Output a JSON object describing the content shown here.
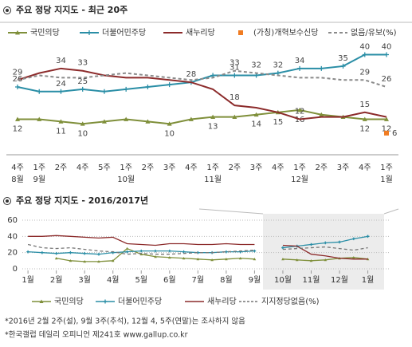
{
  "chart_data": [
    {
      "type": "line",
      "title": "주요 정당 지지도 - 최근 20주",
      "categories": [
        "4주",
        "1주",
        "2주",
        "4주",
        "5주",
        "1주",
        "2주",
        "3주",
        "4주",
        "1주",
        "2주",
        "3주",
        "4주",
        "1주",
        "2주",
        "3주",
        "4주",
        "1주"
      ],
      "months": [
        "8월",
        "9월",
        null,
        null,
        null,
        "10월",
        null,
        null,
        null,
        "11월",
        null,
        null,
        null,
        "12월",
        null,
        null,
        null,
        "1월"
      ],
      "ylim": [
        -2,
        45
      ],
      "series": [
        {
          "name": "국민의당",
          "color": "#7f8f3a",
          "marker": "triangle",
          "values": [
            12,
            12,
            11,
            10,
            11,
            12,
            11,
            10,
            12,
            13,
            13,
            14,
            15,
            16,
            14,
            13,
            12,
            12
          ],
          "value_labels": [
            "12",
            null,
            "11",
            "10",
            null,
            null,
            null,
            "10",
            null,
            "13",
            null,
            "14",
            "15",
            "16",
            null,
            null,
            "12",
            "12"
          ]
        },
        {
          "name": "더불어민주당",
          "color": "#2a8ea6",
          "marker": "plus",
          "values": [
            26,
            24,
            24,
            25,
            24,
            25,
            26,
            27,
            28,
            31,
            31,
            31,
            32,
            34,
            34,
            35,
            40,
            40
          ],
          "value_labels": [
            "26",
            null,
            "24",
            "25",
            null,
            null,
            null,
            null,
            "28",
            null,
            "31",
            null,
            "32",
            "34",
            null,
            "35",
            "40",
            "40"
          ]
        },
        {
          "name": "새누리당",
          "color": "#8c2b2b",
          "marker": null,
          "values": [
            29,
            32,
            34,
            33,
            31,
            30,
            30,
            29,
            28,
            25,
            18,
            17,
            15,
            12,
            13,
            13,
            15,
            13
          ],
          "value_labels": [
            "29",
            null,
            "34",
            "33",
            null,
            null,
            null,
            null,
            null,
            null,
            "18",
            null,
            null,
            "12",
            null,
            null,
            "15",
            null
          ]
        },
        {
          "name": "(가칭)개혁보수신당",
          "color": "#f07c22",
          "marker": "square",
          "values": [
            null,
            null,
            null,
            null,
            null,
            null,
            null,
            null,
            null,
            null,
            null,
            null,
            null,
            null,
            null,
            null,
            null,
            6
          ],
          "value_labels": [
            null,
            null,
            null,
            null,
            null,
            null,
            null,
            null,
            null,
            null,
            null,
            null,
            null,
            null,
            null,
            null,
            null,
            "6"
          ]
        },
        {
          "name": "없음/유보(%)",
          "color": "#8a8a8a",
          "marker": null,
          "style": "dashed",
          "values": [
            29,
            31,
            30,
            30,
            31,
            32,
            31,
            30,
            29,
            30,
            33,
            32,
            31,
            30,
            30,
            29,
            29,
            26
          ],
          "value_labels": [
            null,
            null,
            null,
            null,
            null,
            null,
            null,
            null,
            null,
            null,
            "33",
            "32",
            null,
            null,
            null,
            null,
            "29",
            "26"
          ]
        }
      ]
    },
    {
      "type": "line",
      "title": "주요 정당 지지도 - 2016/2017년",
      "x": [
        1,
        1.5,
        2,
        2.5,
        3,
        3.5,
        4,
        4.5,
        5,
        5.5,
        6,
        6.5,
        7,
        7.5,
        8,
        8.5,
        9,
        9.5,
        10,
        10.5,
        11,
        11.5,
        12,
        12.5,
        13
      ],
      "xlim": [
        0.8,
        13.8
      ],
      "xticks": [
        {
          "value": 1,
          "label": "1월"
        },
        {
          "value": 2,
          "label": "2월"
        },
        {
          "value": 3,
          "label": "3월"
        },
        {
          "value": 4,
          "label": "4월"
        },
        {
          "value": 5,
          "label": "5월"
        },
        {
          "value": 6,
          "label": "6월"
        },
        {
          "value": 7,
          "label": "7월"
        },
        {
          "value": 8,
          "label": "8월"
        },
        {
          "value": 9,
          "label": "9월"
        },
        {
          "value": 10,
          "label": "10월"
        },
        {
          "value": 11,
          "label": "11월"
        },
        {
          "value": 12,
          "label": "12월"
        },
        {
          "value": 13,
          "label": "1월"
        }
      ],
      "ylim": [
        0,
        60
      ],
      "yticks": [
        0,
        20,
        40,
        60
      ],
      "grid": true,
      "series": [
        {
          "name": "국민의당",
          "color": "#7f8f3a",
          "marker": "triangle",
          "values": [
            null,
            null,
            13,
            10,
            9,
            9,
            10,
            25,
            18,
            15,
            14,
            13,
            12,
            11,
            12,
            13,
            12,
            null,
            12,
            11,
            10,
            11,
            13,
            14,
            12
          ]
        },
        {
          "name": "더불어민주당",
          "color": "#2a8ea6",
          "marker": "plus",
          "values": [
            21,
            20,
            19,
            20,
            19,
            18,
            20,
            21,
            22,
            22,
            22,
            21,
            20,
            20,
            21,
            21,
            22,
            null,
            26,
            28,
            30,
            32,
            33,
            37,
            40
          ]
        },
        {
          "name": "새누리당",
          "color": "#8c2b2b",
          "marker": null,
          "values": [
            40,
            40,
            41,
            40,
            39,
            38,
            39,
            31,
            30,
            29,
            31,
            31,
            30,
            30,
            31,
            30,
            30,
            null,
            29,
            28,
            18,
            16,
            13,
            12,
            12
          ]
        },
        {
          "name": "지지정당없음(%)",
          "color": "#777777",
          "marker": null,
          "style": "dashed",
          "values": [
            30,
            26,
            25,
            26,
            24,
            22,
            21,
            18,
            19,
            18,
            18,
            19,
            20,
            20,
            21,
            22,
            23,
            null,
            24,
            25,
            26,
            27,
            25,
            23,
            26
          ]
        }
      ]
    }
  ],
  "footnotes": [
    "*2016년 2월 2주(설), 9월 3주(추석), 12월 4, 5주(연말)는 조사하지 않음",
    "*한국갤럽 데일리 오피니언 제241호 www.gallup.co.kr"
  ]
}
